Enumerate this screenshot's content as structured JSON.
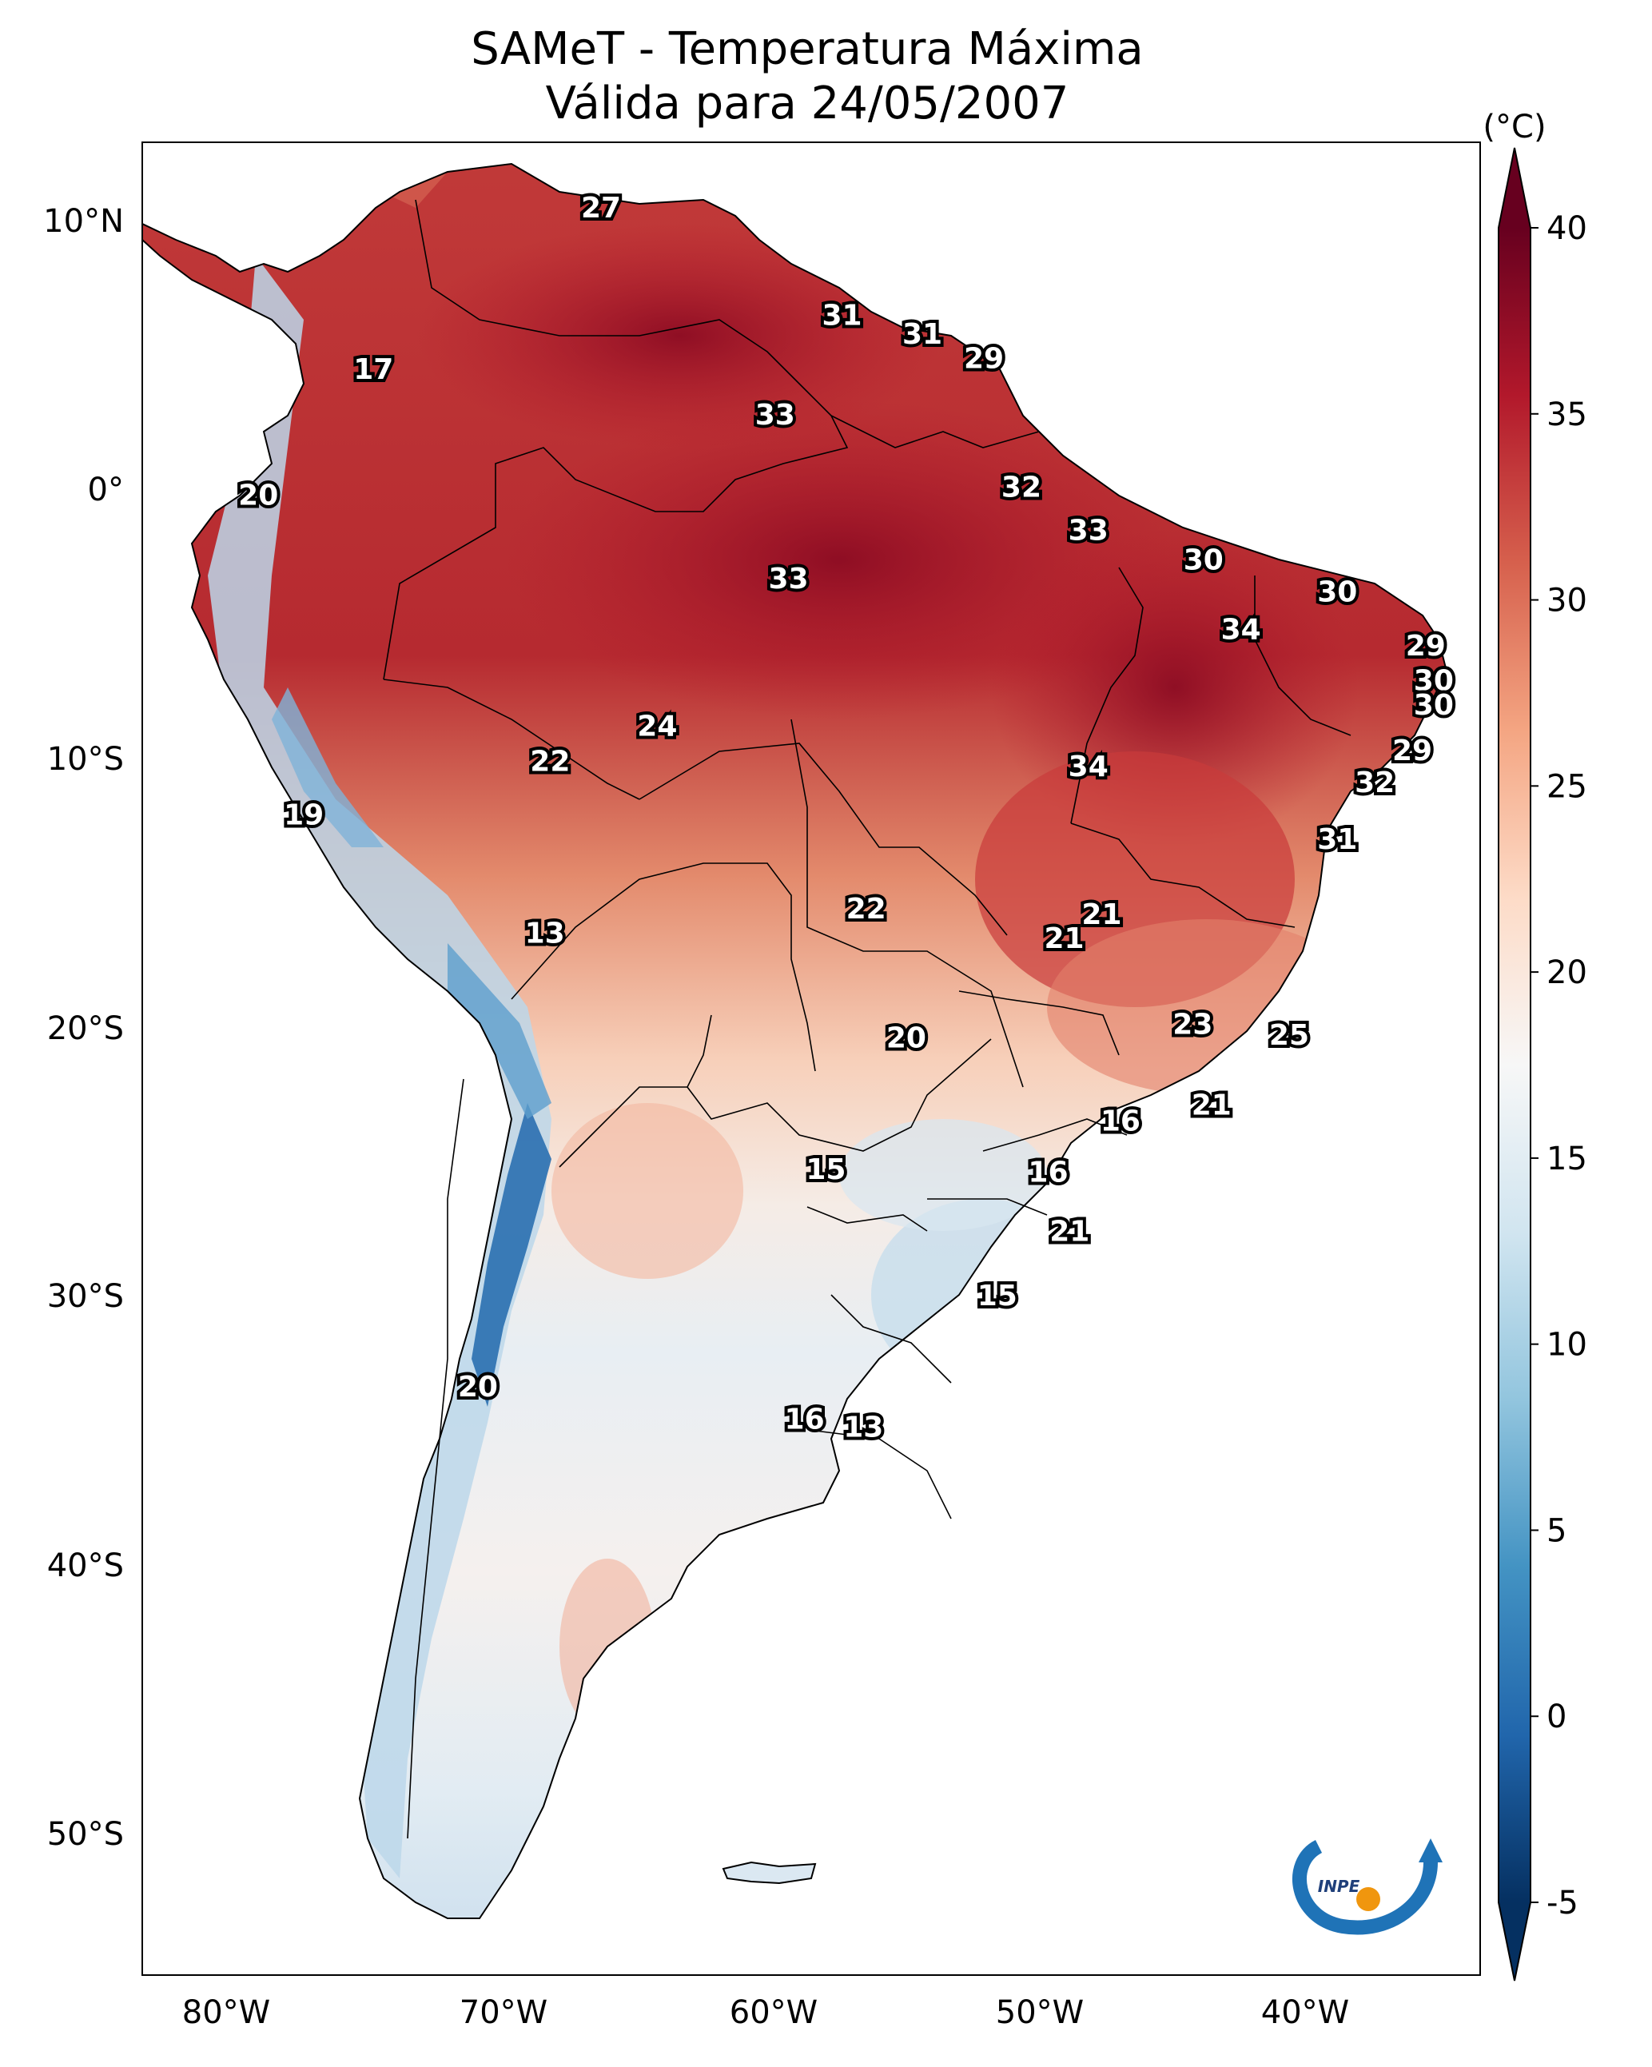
{
  "title": {
    "line1": "SAMeT - Temperatura Máxima",
    "line2": "Válida para 24/05/2007"
  },
  "colorbar": {
    "unit_label": "(°C)",
    "ticks": [
      "40",
      "35",
      "30",
      "25",
      "20",
      "15",
      "10",
      "5",
      "0",
      "-5"
    ],
    "range": [
      -5,
      40
    ],
    "colors": [
      "#053061",
      "#2166ac",
      "#4393c3",
      "#92c5de",
      "#d1e5f0",
      "#f7f7f7",
      "#fddbc7",
      "#f4a582",
      "#d6604d",
      "#b2182b",
      "#67001f"
    ]
  },
  "axes": {
    "lon_labels": [
      "80°W",
      "70°W",
      "60°W",
      "50°W",
      "40°W"
    ],
    "lat_labels": [
      "10°N",
      "0°",
      "10°S",
      "20°S",
      "30°S",
      "40°S",
      "50°S"
    ]
  },
  "point_labels": [
    {
      "text": "27",
      "lon": -66,
      "lat": 10.5
    },
    {
      "text": "17",
      "lon": -74.5,
      "lat": 4.5
    },
    {
      "text": "31",
      "lon": -57,
      "lat": 6.5
    },
    {
      "text": "31",
      "lon": -54,
      "lat": 5.8
    },
    {
      "text": "29",
      "lon": -51.7,
      "lat": 4.9
    },
    {
      "text": "33",
      "lon": -59.5,
      "lat": 2.8
    },
    {
      "text": "20",
      "lon": -78.8,
      "lat": -0.2
    },
    {
      "text": "32",
      "lon": -50.3,
      "lat": 0.1
    },
    {
      "text": "33",
      "lon": -47.8,
      "lat": -1.5
    },
    {
      "text": "30",
      "lon": -43.5,
      "lat": -2.6
    },
    {
      "text": "33",
      "lon": -59,
      "lat": -3.3
    },
    {
      "text": "30",
      "lon": -38.5,
      "lat": -3.8
    },
    {
      "text": "34",
      "lon": -42.1,
      "lat": -5.2
    },
    {
      "text": "29",
      "lon": -35.2,
      "lat": -5.8
    },
    {
      "text": "30",
      "lon": -34.9,
      "lat": -7.1
    },
    {
      "text": "30",
      "lon": -34.9,
      "lat": -8.0
    },
    {
      "text": "24",
      "lon": -63.9,
      "lat": -8.8
    },
    {
      "text": "22",
      "lon": -67.9,
      "lat": -10.1
    },
    {
      "text": "29",
      "lon": -35.7,
      "lat": -9.7
    },
    {
      "text": "34",
      "lon": -47.8,
      "lat": -10.3
    },
    {
      "text": "32",
      "lon": -37.1,
      "lat": -10.9
    },
    {
      "text": "19",
      "lon": -77.1,
      "lat": -12.1
    },
    {
      "text": "31",
      "lon": -38.5,
      "lat": -13.0
    },
    {
      "text": "22",
      "lon": -56.1,
      "lat": -15.6
    },
    {
      "text": "21",
      "lon": -47.3,
      "lat": -15.8
    },
    {
      "text": "21",
      "lon": -48.7,
      "lat": -16.7
    },
    {
      "text": "13",
      "lon": -68.1,
      "lat": -16.5
    },
    {
      "text": "23",
      "lon": -43.9,
      "lat": -19.9
    },
    {
      "text": "25",
      "lon": -40.3,
      "lat": -20.3
    },
    {
      "text": "20",
      "lon": -54.6,
      "lat": -20.4
    },
    {
      "text": "21",
      "lon": -43.2,
      "lat": -22.9
    },
    {
      "text": "16",
      "lon": -46.6,
      "lat": -23.5
    },
    {
      "text": "16",
      "lon": -49.3,
      "lat": -25.4
    },
    {
      "text": "15",
      "lon": -57.6,
      "lat": -25.3
    },
    {
      "text": "21",
      "lon": -48.5,
      "lat": -27.6
    },
    {
      "text": "15",
      "lon": -51.2,
      "lat": -30.0
    },
    {
      "text": "20",
      "lon": -70.6,
      "lat": -33.4
    },
    {
      "text": "16",
      "lon": -58.4,
      "lat": -34.6
    },
    {
      "text": "13",
      "lon": -56.2,
      "lat": -34.9
    }
  ],
  "logo": {
    "text": "INPE"
  }
}
